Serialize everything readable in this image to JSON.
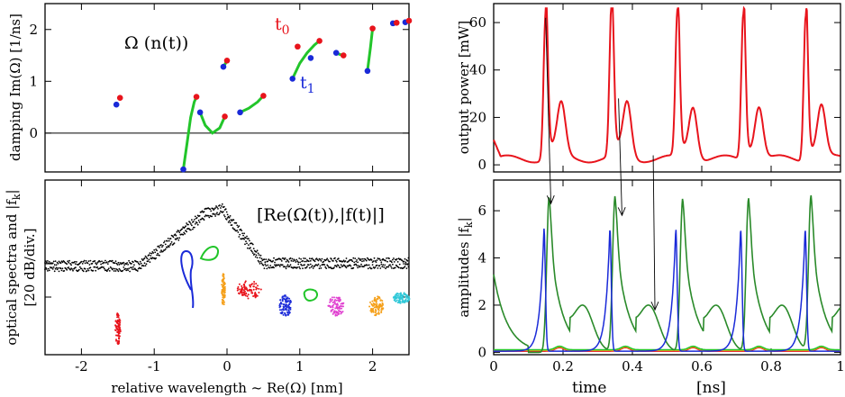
{
  "colors": {
    "red": "#e8141c",
    "blue": "#1a2ad8",
    "green": "#22c52a",
    "darkgreen": "#2a8a2a",
    "orange": "#f5a01a",
    "magenta": "#e040d0",
    "cyan": "#30c8d8",
    "black": "#000000"
  },
  "chart_data": [
    {
      "id": "damping",
      "type": "scatter",
      "ylabel": "damping Im(Ω) [1/ns]",
      "xlim": [
        -2.5,
        2.5
      ],
      "ylim": [
        -0.75,
        2.5
      ],
      "yticks": [
        "0",
        "1",
        "2"
      ],
      "annotations": {
        "omega": "Ω (n(t))",
        "t0": "t",
        "t0_sub": "0",
        "t1": "t",
        "t1_sub": "1"
      },
      "tracks": [
        {
          "t0": [
            -1.47,
            0.68
          ],
          "t1": [
            -1.52,
            0.55
          ],
          "path": []
        },
        {
          "t0": [
            -0.42,
            0.7
          ],
          "t1": [
            -0.6,
            -0.7
          ],
          "path": [
            [
              -0.6,
              -0.7
            ],
            [
              -0.55,
              -0.2
            ],
            [
              -0.5,
              0.3
            ],
            [
              -0.45,
              0.6
            ],
            [
              -0.42,
              0.7
            ]
          ]
        },
        {
          "t0": [
            -0.03,
            0.32
          ],
          "t1": [
            -0.37,
            0.4
          ],
          "path": [
            [
              -0.37,
              0.4
            ],
            [
              -0.3,
              0.15
            ],
            [
              -0.2,
              0.0
            ],
            [
              -0.1,
              0.1
            ],
            [
              -0.03,
              0.32
            ]
          ]
        },
        {
          "t0": [
            0.0,
            1.4
          ],
          "t1": [
            -0.05,
            1.28
          ],
          "path": [
            [
              -0.05,
              1.28
            ],
            [
              -0.02,
              1.35
            ],
            [
              0.0,
              1.4
            ]
          ]
        },
        {
          "t0": [
            0.5,
            0.72
          ],
          "t1": [
            0.18,
            0.4
          ],
          "path": [
            [
              0.18,
              0.4
            ],
            [
              0.3,
              0.48
            ],
            [
              0.42,
              0.6
            ],
            [
              0.5,
              0.72
            ]
          ]
        },
        {
          "t0": [
            1.27,
            1.78
          ],
          "t1": [
            0.9,
            1.05
          ],
          "path": [
            [
              0.9,
              1.05
            ],
            [
              1.0,
              1.35
            ],
            [
              1.1,
              1.55
            ],
            [
              1.2,
              1.7
            ],
            [
              1.27,
              1.78
            ]
          ]
        },
        {
          "t0": [
            0.97,
            1.67
          ],
          "t1": [
            1.15,
            1.45
          ],
          "path": []
        },
        {
          "t0": [
            1.6,
            1.5
          ],
          "t1": [
            1.5,
            1.55
          ],
          "path": [
            [
              1.5,
              1.55
            ],
            [
              1.55,
              1.52
            ],
            [
              1.6,
              1.5
            ]
          ]
        },
        {
          "t0": [
            2.0,
            2.02
          ],
          "t1": [
            1.93,
            1.2
          ],
          "path": [
            [
              1.93,
              1.2
            ],
            [
              1.97,
              1.65
            ],
            [
              2.0,
              2.02
            ]
          ]
        },
        {
          "t0": [
            2.33,
            2.13
          ],
          "t1": [
            2.28,
            2.12
          ],
          "path": []
        },
        {
          "t0": [
            2.5,
            2.17
          ],
          "t1": [
            2.45,
            2.14
          ],
          "path": []
        }
      ]
    },
    {
      "id": "spectra",
      "type": "scatter",
      "xlabel": "relative wavelength ~ Re(Ω) [nm]",
      "ylabel_line1": "optical spectra and |f",
      "ylabel_sub": "k",
      "ylabel_line1_end": "|",
      "ylabel_line2": "[20 dB/div.]",
      "annotation": "[Re(Ω(t)),|f(t)|]",
      "xlim": [
        -2.5,
        2.5
      ],
      "xticks": [
        -2,
        -1,
        0,
        1,
        2
      ],
      "xticklabels": [
        "-2",
        "-1",
        "0",
        "1",
        "2"
      ],
      "ylim": [
        0,
        10
      ]
    },
    {
      "id": "power",
      "type": "line",
      "ylabel": "output power [mW]",
      "xlim": [
        0,
        1
      ],
      "ylim": [
        -3,
        68
      ],
      "yticks": [
        0,
        20,
        40,
        60
      ],
      "yticklabels": [
        "0",
        "20",
        "40",
        "60"
      ],
      "peaks": [
        0.15,
        0.34,
        0.53,
        0.72,
        0.9
      ],
      "peak_values": [
        62,
        65,
        62,
        62,
        62
      ]
    },
    {
      "id": "amplitudes",
      "type": "line",
      "xlabel_left": "time",
      "xlabel_right": "[ns]",
      "ylabel": "amplitudes |f",
      "ylabel_sub": "k",
      "ylabel_end": "|",
      "xlim": [
        0,
        1
      ],
      "ylim": [
        -0.1,
        7.3
      ],
      "xticks": [
        0,
        0.2,
        0.4,
        0.6,
        0.8,
        1
      ],
      "xticklabels": [
        "0",
        "0.2",
        "0.4",
        "0.6",
        "0.8",
        "1"
      ],
      "yticks": [
        0,
        2,
        4,
        6
      ],
      "yticklabels": [
        "0",
        "2",
        "4",
        "6"
      ],
      "series": [
        {
          "color_key": "darkgreen",
          "peak_times": [
            0.16,
            0.35,
            0.545,
            0.735,
            0.915
          ],
          "peak_values": [
            6.6,
            6.6,
            6.5,
            6.5,
            6.6
          ]
        },
        {
          "color_key": "blue",
          "peak_times": [
            0.145,
            0.335,
            0.525,
            0.712,
            0.898
          ],
          "peak_values": [
            5.2,
            5.2,
            5.2,
            5.2,
            5.2
          ]
        }
      ],
      "arrows": [
        {
          "t_from": 0.15,
          "p_from": 62,
          "t_to": 0.165,
          "a_to": 6.3
        },
        {
          "t_from": 0.36,
          "p_from": 28,
          "t_to": 0.37,
          "a_to": 5.8
        },
        {
          "t_from": 0.46,
          "p_from": 4,
          "t_to": 0.465,
          "a_to": 1.8
        }
      ]
    }
  ]
}
